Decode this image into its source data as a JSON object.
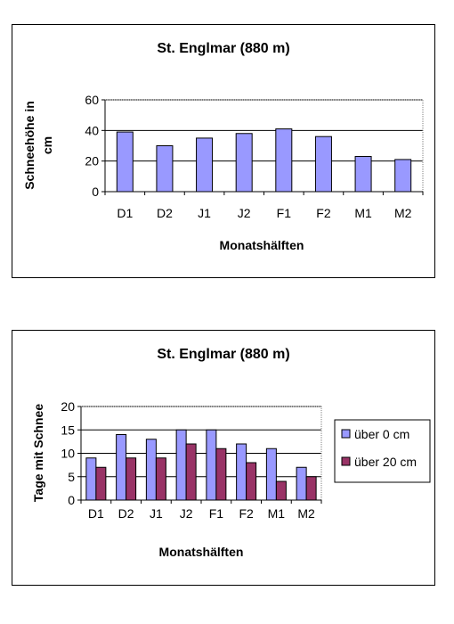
{
  "chart_data": [
    {
      "type": "bar",
      "title": "St. Englmar (880 m)",
      "xlabel": "Monatshälften",
      "ylabel": "Schneehöhe in cm",
      "categories": [
        "D1",
        "D2",
        "J1",
        "J2",
        "F1",
        "F2",
        "M1",
        "M2"
      ],
      "series": [
        {
          "values": [
            39,
            30,
            35,
            38,
            41,
            36,
            23,
            21
          ],
          "color": "#9999FF"
        }
      ],
      "ylim": [
        0,
        60
      ],
      "yticks": [
        0,
        20,
        40,
        60
      ],
      "grid": true,
      "legend": "none"
    },
    {
      "type": "bar",
      "title": "St. Englmar (880 m)",
      "xlabel": "Monatshälften",
      "ylabel": "Tage mit Schnee",
      "categories": [
        "D1",
        "D2",
        "J1",
        "J2",
        "F1",
        "F2",
        "M1",
        "M2"
      ],
      "series": [
        {
          "name": "über 0 cm",
          "values": [
            9,
            14,
            13,
            15,
            15,
            12,
            11,
            7
          ],
          "color": "#9999FF"
        },
        {
          "name": "über 20 cm",
          "values": [
            7,
            9,
            9,
            12,
            11,
            8,
            4,
            5
          ],
          "color": "#993366"
        }
      ],
      "ylim": [
        0,
        20
      ],
      "yticks": [
        0,
        5,
        10,
        15,
        20
      ],
      "grid": true,
      "legend": "right"
    }
  ]
}
